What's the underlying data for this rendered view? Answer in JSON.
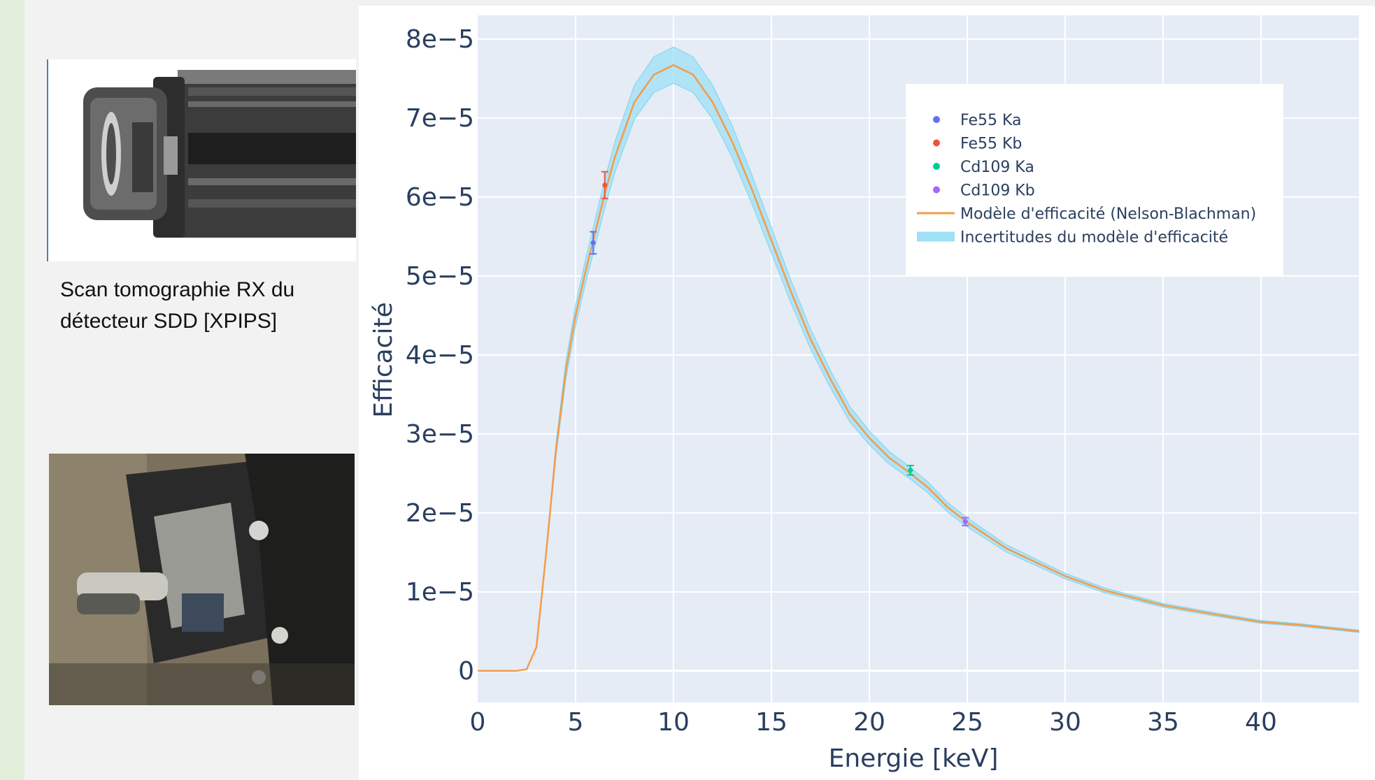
{
  "left_panel": {
    "caption_line1": "Scan tomographie RX du",
    "caption_line2": "détecteur SDD [XPIPS]"
  },
  "chart_data": {
    "type": "line",
    "xlabel": "Energie [keV]",
    "ylabel": "Efficacité",
    "xlim": [
      0,
      45
    ],
    "ylim": [
      -4e-06,
      8.3e-05
    ],
    "x_ticks": [
      "0",
      "5",
      "10",
      "15",
      "20",
      "25",
      "30",
      "35",
      "40"
    ],
    "y_ticks": [
      "0",
      "1e−5",
      "2e−5",
      "3e−5",
      "4e−5",
      "5e−5",
      "6e−5",
      "7e−5",
      "8e−5"
    ],
    "grid": true,
    "legend_position": "top-right",
    "series": [
      {
        "name": "Fe55 Ka",
        "mode": "markers",
        "color": "#636efa",
        "x": [
          5.9
        ],
        "y": [
          5.42e-05
        ],
        "error": [
          1.4e-06
        ]
      },
      {
        "name": "Fe55 Kb",
        "mode": "markers",
        "color": "#ef553b",
        "x": [
          6.49
        ],
        "y": [
          6.15e-05
        ],
        "error": [
          1.7e-06
        ]
      },
      {
        "name": "Cd109 Ka",
        "mode": "markers",
        "color": "#00cc96",
        "x": [
          22.1
        ],
        "y": [
          2.54e-05
        ],
        "error": [
          6e-07
        ]
      },
      {
        "name": "Cd109 Kb",
        "mode": "markers",
        "color": "#ab63fa",
        "x": [
          24.9
        ],
        "y": [
          1.89e-05
        ],
        "error": [
          5e-07
        ]
      },
      {
        "name": "Modèle d'efficacité (Nelson-Blachman)",
        "mode": "line",
        "color": "#f39c4a",
        "x": [
          0,
          2,
          2.5,
          3,
          3.5,
          4,
          4.5,
          5,
          5.5,
          6,
          6.5,
          7,
          8,
          9,
          10,
          11,
          12,
          13,
          14,
          15,
          16,
          17,
          18,
          19,
          20,
          21,
          22,
          23,
          24,
          25,
          27,
          30,
          32,
          35,
          38,
          40,
          42,
          45
        ],
        "y": [
          0,
          0,
          2e-07,
          3e-06,
          1.5e-05,
          2.8e-05,
          3.8e-05,
          4.5e-05,
          5.05e-05,
          5.55e-05,
          6.05e-05,
          6.5e-05,
          7.2e-05,
          7.55e-05,
          7.67e-05,
          7.55e-05,
          7.2e-05,
          6.7e-05,
          6.1e-05,
          5.45e-05,
          4.8e-05,
          4.2e-05,
          3.7e-05,
          3.25e-05,
          2.95e-05,
          2.7e-05,
          2.52e-05,
          2.32e-05,
          2.07e-05,
          1.88e-05,
          1.55e-05,
          1.2e-05,
          1.02e-05,
          8.3e-06,
          7e-06,
          6.2e-06,
          5.8e-06,
          5e-06
        ]
      },
      {
        "name": "Incertitudes du modèle d'efficacité",
        "mode": "band",
        "color": "#9ee0f5",
        "relative_width": 0.03
      }
    ]
  }
}
